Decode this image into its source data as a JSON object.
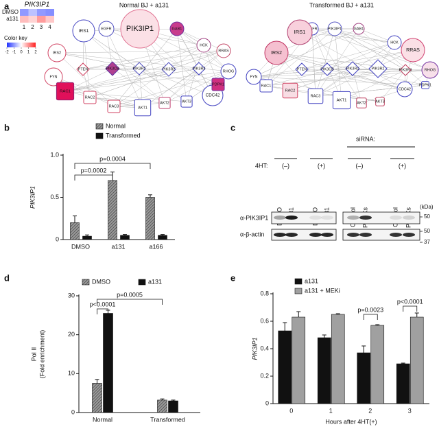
{
  "panel_labels": [
    "a",
    "b",
    "c",
    "d",
    "e"
  ],
  "heatmap": {
    "title": "PIK3IP1",
    "rows": [
      "DMSO",
      "a131"
    ],
    "columns": [
      1,
      2,
      3,
      4
    ],
    "values": [
      [
        -1,
        -0.6,
        -1,
        -1.1
      ],
      [
        0.6,
        0.4,
        0.9,
        0.5
      ]
    ],
    "color_key": {
      "title": "Color key",
      "ticks": [
        -2,
        -1,
        0,
        1,
        2
      ]
    }
  },
  "networks": [
    {
      "title": "Normal BJ + a131",
      "nodes": [
        {
          "label": "PIK3IP1",
          "shape": "circle",
          "fill": "#fbe0e6",
          "stroke": "#e07090"
        },
        {
          "label": "GAB1",
          "shape": "circle",
          "fill": "#c83c8c",
          "stroke": "#7030a0"
        },
        {
          "label": "EGFR",
          "shape": "circle",
          "fill": "#ffffff",
          "stroke": "#5050c0"
        },
        {
          "label": "IRS1",
          "shape": "circle",
          "fill": "#ffffff",
          "stroke": "#4040c0"
        },
        {
          "label": "IRS2",
          "shape": "circle",
          "fill": "#ffffff",
          "stroke": "#d04060"
        },
        {
          "label": "FYN",
          "shape": "circle",
          "fill": "#ffffff",
          "stroke": "#d04060"
        },
        {
          "label": "HCK",
          "shape": "circle",
          "fill": "#ffffff",
          "stroke": "#a04080"
        },
        {
          "label": "RRAS",
          "shape": "circle",
          "fill": "#ffffff",
          "stroke": "#c04060"
        },
        {
          "label": "RHOG",
          "shape": "circle",
          "fill": "#ffffff",
          "stroke": "#4040c0"
        },
        {
          "label": "PTEN",
          "shape": "diamond",
          "fill": "#ffffff",
          "stroke": "#d04060"
        },
        {
          "label": "PIK3CB",
          "shape": "diamond",
          "fill": "#b04090",
          "stroke": "#6030a0"
        },
        {
          "label": "PIK3R1",
          "shape": "diamond",
          "fill": "#ffffff",
          "stroke": "#5050c0"
        },
        {
          "label": "PIK3R2",
          "shape": "diamond",
          "fill": "#ffffff",
          "stroke": "#5050c0"
        },
        {
          "label": "PIK3R3",
          "shape": "diamond",
          "fill": "#ffffff",
          "stroke": "#4040c0"
        },
        {
          "label": "RAC1",
          "shape": "square",
          "fill": "#e0105a",
          "stroke": "#902070"
        },
        {
          "label": "RAC2",
          "shape": "square",
          "fill": "#ffffff",
          "stroke": "#d04060"
        },
        {
          "label": "RAC3",
          "shape": "square",
          "fill": "#ffffff",
          "stroke": "#d04060"
        },
        {
          "label": "AKT1",
          "shape": "square",
          "fill": "#ffffff",
          "stroke": "#4040c0"
        },
        {
          "label": "AKT2",
          "shape": "square",
          "fill": "#ffffff",
          "stroke": "#c04070"
        },
        {
          "label": "AKT3",
          "shape": "square",
          "fill": "#ffffff",
          "stroke": "#4040c0"
        },
        {
          "label": "CDC42",
          "shape": "circle",
          "fill": "#ffffff",
          "stroke": "#4040c0"
        },
        {
          "label": "PDPK1",
          "shape": "square",
          "fill": "#d03080",
          "stroke": "#7030a0"
        }
      ]
    },
    {
      "title": "Transformed BJ + a131",
      "nodes": [
        {
          "label": "PIK3IP1",
          "shape": "circle",
          "fill": "#ffffff",
          "stroke": "#5050c0"
        },
        {
          "label": "GAB1",
          "shape": "circle",
          "fill": "#ffffff",
          "stroke": "#a04080"
        },
        {
          "label": "EGFR",
          "shape": "circle",
          "fill": "#ffffff",
          "stroke": "#4040c0"
        },
        {
          "label": "IRS1",
          "shape": "circle",
          "fill": "#f8d0dc",
          "stroke": "#b04070"
        },
        {
          "label": "IRS2",
          "shape": "circle",
          "fill": "#f5c0d0",
          "stroke": "#c03060"
        },
        {
          "label": "FYN",
          "shape": "circle",
          "fill": "#ffffff",
          "stroke": "#4040c0"
        },
        {
          "label": "HCK",
          "shape": "circle",
          "fill": "#ffffff",
          "stroke": "#4040c0"
        },
        {
          "label": "RRAS",
          "shape": "circle",
          "fill": "#fbe0e6",
          "stroke": "#d04070"
        },
        {
          "label": "RHOG",
          "shape": "circle",
          "fill": "#f8e0ea",
          "stroke": "#7030a0"
        },
        {
          "label": "PTEN",
          "shape": "diamond",
          "fill": "#ffffff",
          "stroke": "#4040c0"
        },
        {
          "label": "PIK3CB",
          "shape": "diamond",
          "fill": "#ffffff",
          "stroke": "#4040c0"
        },
        {
          "label": "PIK3R1",
          "shape": "diamond",
          "fill": "#ffffff",
          "stroke": "#4040c0"
        },
        {
          "label": "PIK3R2",
          "shape": "diamond",
          "fill": "#ffffff",
          "stroke": "#4040c0"
        },
        {
          "label": "PIK3R3",
          "shape": "diamond",
          "fill": "#ffffff",
          "stroke": "#c04060"
        },
        {
          "label": "RAC1",
          "shape": "square",
          "fill": "#ffffff",
          "stroke": "#4040c0"
        },
        {
          "label": "RAC2",
          "shape": "square",
          "fill": "#f8dde4",
          "stroke": "#d04060"
        },
        {
          "label": "RAC3",
          "shape": "square",
          "fill": "#ffffff",
          "stroke": "#4040c0"
        },
        {
          "label": "AKT1",
          "shape": "square",
          "fill": "#ffffff",
          "stroke": "#4040c0"
        },
        {
          "label": "AKT2",
          "shape": "square",
          "fill": "#ffffff",
          "stroke": "#c04060"
        },
        {
          "label": "AKT3",
          "shape": "square",
          "fill": "#ffffff",
          "stroke": "#c04060"
        },
        {
          "label": "CDC42",
          "shape": "circle",
          "fill": "#ffffff",
          "stroke": "#4040c0"
        },
        {
          "label": "PDPK1",
          "shape": "square",
          "fill": "#ffffff",
          "stroke": "#4040c0"
        }
      ]
    }
  ],
  "blot": {
    "treatment_label": "4HT:",
    "groups": [
      "(–)",
      "(+)",
      "(–)",
      "(+)"
    ],
    "sirna_label": "siRNA:",
    "lanes": [
      "DMSO",
      "a131",
      "DMSO",
      "a131",
      "Control",
      "PIP4Ks",
      "Control",
      "PIP4Ks"
    ],
    "rows": [
      "α-PIK3IP1",
      "α-β-actin"
    ],
    "unit": "(kDa)",
    "markers": [
      50,
      50,
      37
    ]
  },
  "chart_data": [
    {
      "type": "bar",
      "categories": [
        "DMSO",
        "a131",
        "a166"
      ],
      "series": [
        {
          "name": "Normal",
          "color": "#9a9a9a",
          "hatch": true,
          "values": [
            0.2,
            0.7,
            0.5
          ],
          "errors": [
            0.08,
            0.1,
            0.03
          ]
        },
        {
          "name": "Transformed",
          "color": "#111111",
          "hatch": false,
          "values": [
            0.04,
            0.05,
            0.05
          ],
          "errors": [
            0.015,
            0.01,
            0.01
          ]
        }
      ],
      "ylabel": "PIK3IP1",
      "ylim": [
        0,
        1
      ],
      "yticks": [
        0,
        0.5,
        {
          "value": 1,
          "label": "1.0"
        }
      ],
      "annotations": [
        "p=0.0002",
        "p=0.0004"
      ]
    },
    {
      "type": "bar",
      "categories": [
        "Normal",
        "Transformed"
      ],
      "series": [
        {
          "name": "DMSO",
          "color": "#9a9a9a",
          "hatch": true,
          "values": [
            7.5,
            3.2
          ],
          "errors": [
            1,
            0.3
          ]
        },
        {
          "name": "a131",
          "color": "#111111",
          "hatch": false,
          "values": [
            25.5,
            3.0
          ],
          "errors": [
            0.8,
            0.2
          ]
        }
      ],
      "ylabel": [
        "Pol II",
        "(Fold enrichment)"
      ],
      "ylim": [
        0,
        30
      ],
      "yticks": [
        0,
        10,
        20,
        30
      ],
      "annotations": [
        "p=0.0005",
        "p<0.0001"
      ]
    },
    {
      "type": "bar",
      "categories": [
        0,
        1,
        2,
        3
      ],
      "series": [
        {
          "name": "a131",
          "color": "#111111",
          "hatch": false,
          "values": [
            0.53,
            0.48,
            0.37,
            0.29
          ],
          "errors": [
            0.06,
            0.02,
            0.05,
            0.005
          ]
        },
        {
          "name": "a131 + MEKi",
          "color": "#a0a0a0",
          "hatch": false,
          "values": [
            0.63,
            0.65,
            0.57,
            0.63
          ],
          "errors": [
            0.04,
            0.005,
            0.005,
            0.03
          ]
        }
      ],
      "ylabel": "PIK3IP1",
      "xlabel": "Hours after 4HT(+)",
      "ylim": [
        0,
        0.8
      ],
      "yticks": [
        0,
        0.2,
        0.4,
        0.6,
        0.8
      ],
      "annotations": [
        "p=0.0023",
        "p<0.0001"
      ]
    }
  ]
}
